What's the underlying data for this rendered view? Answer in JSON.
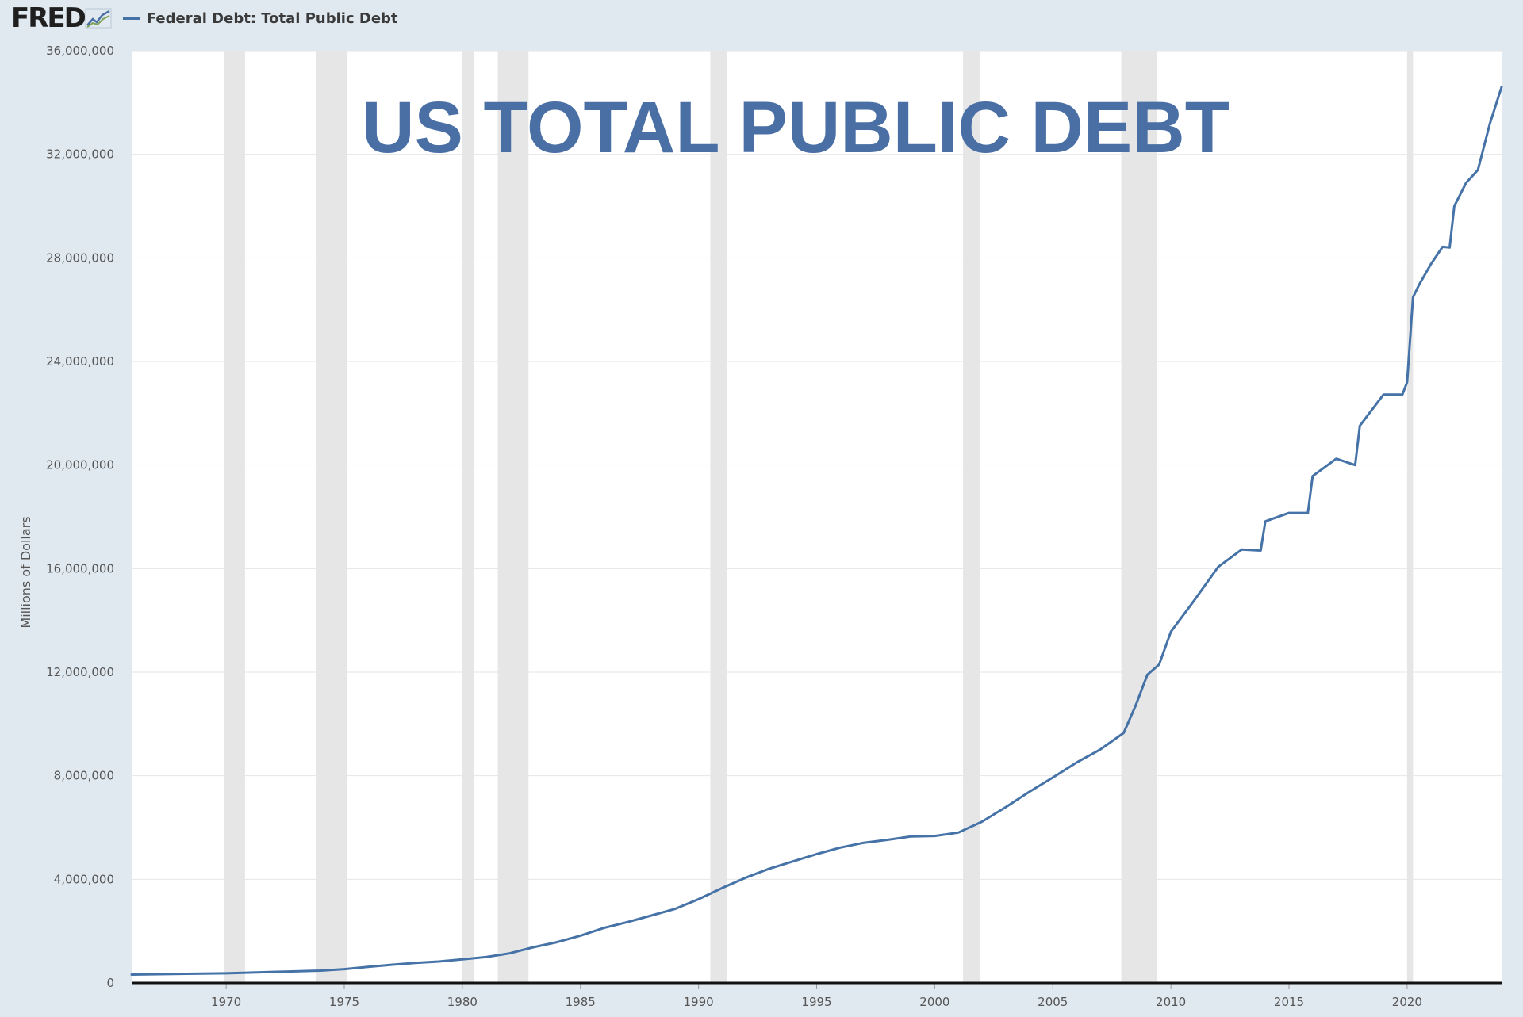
{
  "header": {
    "logo_text": "FRED",
    "logo_icon": "chart-trend-icon",
    "legend_label": "Federal Debt: Total Public Debt"
  },
  "chart_data": {
    "type": "line",
    "title": "US TOTAL PUBLIC DEBT",
    "ylabel": "Millions of Dollars",
    "xlabel": "",
    "xlim": [
      1966.0,
      2024.0
    ],
    "ylim": [
      0,
      36000000
    ],
    "yticks": [
      0,
      4000000,
      8000000,
      12000000,
      16000000,
      20000000,
      24000000,
      28000000,
      32000000,
      36000000
    ],
    "ytick_labels": [
      "0",
      "4,000,000",
      "8,000,000",
      "12,000,000",
      "16,000,000",
      "20,000,000",
      "24,000,000",
      "28,000,000",
      "32,000,000",
      "36,000,000"
    ],
    "xticks": [
      1970,
      1975,
      1980,
      1985,
      1990,
      1995,
      2000,
      2005,
      2010,
      2015,
      2020
    ],
    "xtick_labels": [
      "1970",
      "1975",
      "1980",
      "1985",
      "1990",
      "1995",
      "2000",
      "2005",
      "2010",
      "2015",
      "2020"
    ],
    "grid": true,
    "legend_position": "top-left",
    "recessions": [
      [
        1969.9,
        1970.8
      ],
      [
        1973.8,
        1975.1
      ],
      [
        1980.0,
        1980.5
      ],
      [
        1981.5,
        1982.8
      ],
      [
        1990.5,
        1991.2
      ],
      [
        2001.2,
        2001.9
      ],
      [
        2007.9,
        2009.4
      ],
      [
        2020.0,
        2020.25
      ]
    ],
    "series": [
      {
        "color": "#4572a7",
        "x": [
          1966,
          1968,
          1970,
          1972,
          1974,
          1975,
          1976,
          1977,
          1978,
          1979,
          1980,
          1981,
          1982,
          1983,
          1984,
          1985,
          1986,
          1987,
          1988,
          1989,
          1990,
          1991,
          1992,
          1993,
          1994,
          1995,
          1996,
          1997,
          1998,
          1999,
          2000,
          2001,
          2002,
          2003,
          2004,
          2005,
          2006,
          2007,
          2008,
          2008.5,
          2009,
          2009.5,
          2010,
          2011,
          2012,
          2013,
          2013.8,
          2014,
          2015,
          2015.8,
          2016,
          2017,
          2017.8,
          2018,
          2019,
          2019.8,
          2020,
          2020.25,
          2020.5,
          2021,
          2021.5,
          2021.8,
          2022,
          2022.5,
          2023,
          2023.5,
          2024
        ],
        "values": [
          320000,
          348000,
          370000,
          427000,
          475000,
          533000,
          620000,
          700000,
          771000,
          827000,
          908000,
          998000,
          1142000,
          1377000,
          1572000,
          1823000,
          2125000,
          2350000,
          2602000,
          2857000,
          3233000,
          3665000,
          4064000,
          4411000,
          4692000,
          4974000,
          5224000,
          5413000,
          5526000,
          5656000,
          5674000,
          5807000,
          6228000,
          6783000,
          7379000,
          7933000,
          8507000,
          9008000,
          9654000,
          10700000,
          11900000,
          12300000,
          13562000,
          14790000,
          16066000,
          16738000,
          16700000,
          17824000,
          18151000,
          18150000,
          19573000,
          20245000,
          20000000,
          21516000,
          22719000,
          22719000,
          23201000,
          26477000,
          26950000,
          27750000,
          28428000,
          28400000,
          30000000,
          30900000,
          31400000,
          33170000,
          34600000
        ]
      }
    ]
  }
}
